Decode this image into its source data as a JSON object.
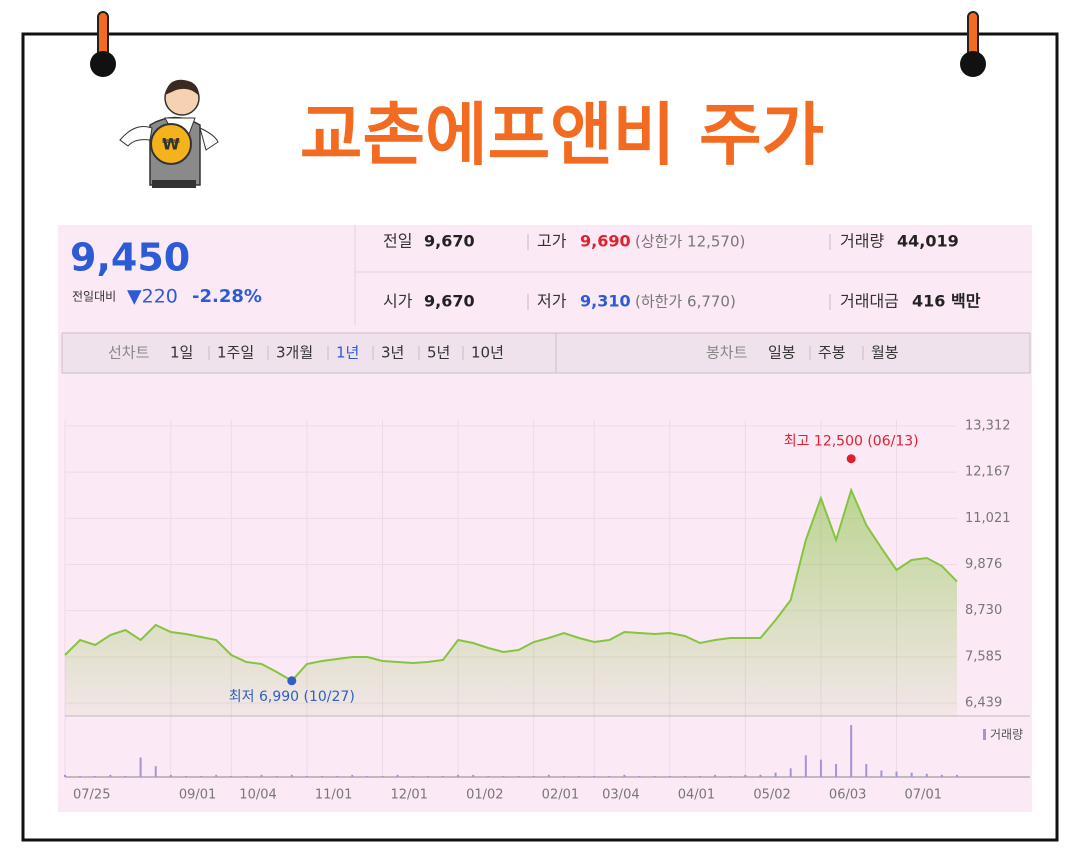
{
  "header": {
    "title": "교촌에프앤비 주가"
  },
  "quote": {
    "price": "9,450",
    "change_label": "전일대비",
    "change": "▼220",
    "change_rate": "-2.28%",
    "prev_label": "전일",
    "prev": "9,670",
    "high_label": "고가",
    "high": "9,690",
    "upper_limit": "(상한가 12,570)",
    "volume_label": "거래량",
    "volume": "44,019",
    "open_label": "시가",
    "open": "9,670",
    "low_label": "저가",
    "low": "9,310",
    "lower_limit": "(하한가 6,770)",
    "amount_label": "거래대금",
    "amount": "416 백만"
  },
  "tabs": {
    "line_chart": "선차트",
    "periods": [
      "1일",
      "1주일",
      "3개월",
      "1년",
      "3년",
      "5년",
      "10년"
    ],
    "candle_chart": "봉차트",
    "candle_periods": [
      "일봉",
      "주봉",
      "월봉"
    ]
  },
  "chart_data": {
    "type": "line",
    "color": "#86c440",
    "categories": [
      "07/25",
      null,
      null,
      null,
      null,
      null,
      null,
      "09/01",
      null,
      null,
      null,
      "10/04",
      null,
      null,
      null,
      null,
      "11/01",
      null,
      null,
      null,
      null,
      "12/01",
      null,
      null,
      null,
      null,
      "01/02",
      null,
      null,
      null,
      null,
      "02/01",
      null,
      null,
      null,
      "03/04",
      null,
      null,
      null,
      null,
      "04/01",
      null,
      null,
      null,
      null,
      "05/02",
      null,
      null,
      null,
      null,
      "06/03",
      null,
      null,
      null,
      null,
      "07/01",
      null,
      null,
      null,
      null
    ],
    "values": [
      7630,
      8002,
      7878,
      8126,
      8250,
      8002,
      8374,
      8201,
      8151,
      8077,
      8002,
      7630,
      7456,
      7406,
      7208,
      6990,
      7406,
      7481,
      7530,
      7580,
      7580,
      7481,
      7456,
      7431,
      7456,
      7506,
      8002,
      7928,
      7803,
      7704,
      7754,
      7952,
      8052,
      8176,
      8052,
      7952,
      8002,
      8201,
      8176,
      8151,
      8176,
      8102,
      7928,
      8002,
      8052,
      8052,
      8052,
      8498,
      8995,
      10483,
      11524,
      10483,
      11722,
      10854,
      10284,
      9739,
      9987,
      10036,
      9838,
      9450
    ],
    "ylim": [
      6439,
      13312
    ],
    "yticks": [
      {
        "value": 6439,
        "label": "6,439"
      },
      {
        "value": 7585,
        "label": "7,585"
      },
      {
        "value": 8730,
        "label": "8,730"
      },
      {
        "value": 9876,
        "label": "9,876"
      },
      {
        "value": 11021,
        "label": "11,021"
      },
      {
        "value": 12167,
        "label": "12,167"
      },
      {
        "value": 13312,
        "label": "13,312"
      }
    ],
    "grid": true,
    "high": {
      "label": "최고 12,500 (06/13)",
      "value": 12500,
      "color": "#e0202c"
    },
    "low": {
      "label": "최저 6,990 (10/27)",
      "value": 6990,
      "color": "#2f5fc4"
    },
    "volume": {
      "label": "거래량",
      "color": "#a394d8",
      "values": [
        2,
        1,
        1,
        2,
        1,
        18,
        10,
        2,
        1,
        1,
        2,
        1,
        1,
        2,
        1,
        2,
        1,
        1,
        1,
        2,
        1,
        1,
        2,
        1,
        1,
        1,
        2,
        2,
        1,
        1,
        1,
        1,
        2,
        1,
        1,
        1,
        1,
        2,
        1,
        1,
        1,
        1,
        1,
        2,
        1,
        2,
        2,
        4,
        8,
        20,
        16,
        12,
        48,
        12,
        6,
        5,
        4,
        3,
        2,
        2
      ]
    }
  }
}
